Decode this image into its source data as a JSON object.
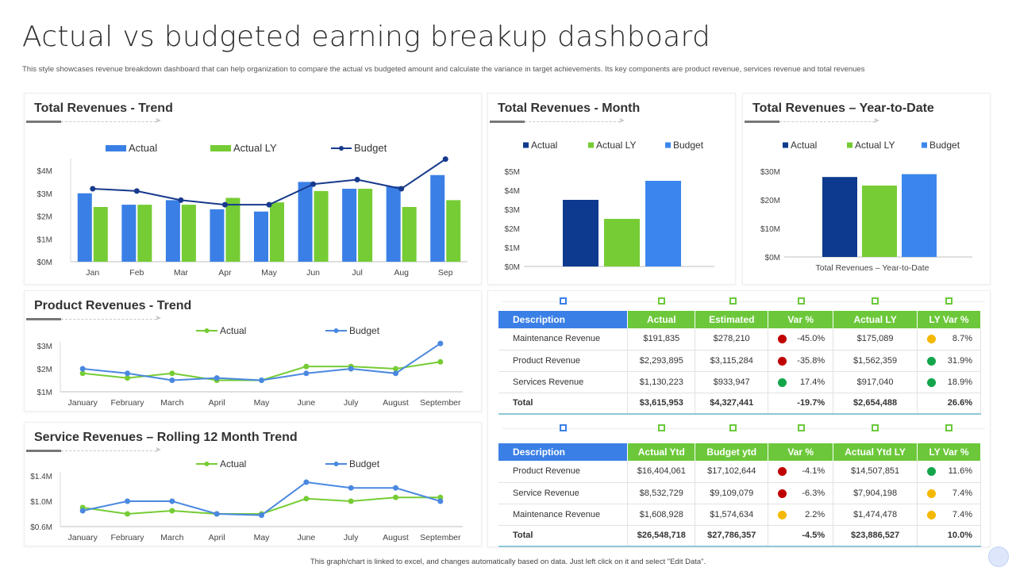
{
  "page": {
    "title": "Actual vs budgeted earning breakup dashboard",
    "subtitle": "This style showcases revenue breakdown dashboard that can help organization to compare the actual vs budgeted amount  and calculate the variance in target achievements. Its key components are product revenue, services revenue and total revenues",
    "footer": "This graph/chart is linked to excel, and changes automatically based on data. Just left click on it and select \"Edit Data\"."
  },
  "colors": {
    "actual": "#3a7fe6",
    "actual_ly": "#76cc34",
    "budget": "#173a8c",
    "month_actual": "#0d3a8e",
    "month_budget": "#3a86ee",
    "line_actual": "#76cc34",
    "line_budget": "#4a88e0",
    "header_green": "#6cc83a",
    "header_blue": "#3a7fe6",
    "status_red": "#c00000",
    "status_green": "#13a54a",
    "status_yellow": "#f5b800"
  },
  "chart_data": [
    {
      "id": "trend",
      "type": "bar",
      "title": "Total Revenues - Trend",
      "categories": [
        "Jan",
        "Feb",
        "Mar",
        "Apr",
        "May",
        "Jun",
        "Jul",
        "Aug",
        "Sep"
      ],
      "series": [
        {
          "name": "Actual",
          "type": "bar",
          "values": [
            3.0,
            2.5,
            2.7,
            2.3,
            2.2,
            3.5,
            3.2,
            3.3,
            3.8
          ]
        },
        {
          "name": "Actual LY",
          "type": "bar",
          "values": [
            2.4,
            2.5,
            2.5,
            2.8,
            2.6,
            3.1,
            3.2,
            2.4,
            2.7
          ]
        },
        {
          "name": "Budget",
          "type": "line",
          "values": [
            3.2,
            3.1,
            2.7,
            2.5,
            2.5,
            3.4,
            3.6,
            3.2,
            4.5
          ]
        }
      ],
      "yticks": [
        "$0M",
        "$1M",
        "$2M",
        "$3M",
        "$4M"
      ],
      "ylim": [
        0,
        4.5
      ],
      "legend": "top"
    },
    {
      "id": "month",
      "type": "bar",
      "title": "Total Revenues - Month",
      "categories": [
        ""
      ],
      "series": [
        {
          "name": "Actual",
          "values": [
            3.5
          ]
        },
        {
          "name": "Actual LY",
          "values": [
            2.5
          ]
        },
        {
          "name": "Budget",
          "values": [
            4.5
          ]
        }
      ],
      "yticks": [
        "$0M",
        "$1M",
        "$2M",
        "$3M",
        "$4M",
        "$5M"
      ],
      "ylim": [
        0,
        5
      ],
      "legend": "top"
    },
    {
      "id": "ytd",
      "type": "bar",
      "title": "Total Revenues – Year-to-Date",
      "categories": [
        "Total Revenues – Year-to-Date"
      ],
      "series": [
        {
          "name": "Actual",
          "values": [
            28
          ]
        },
        {
          "name": "Actual LY",
          "values": [
            25
          ]
        },
        {
          "name": "Budget",
          "values": [
            29
          ]
        }
      ],
      "yticks": [
        "$0M",
        "$10M",
        "$20M",
        "$30M"
      ],
      "ylim": [
        0,
        30
      ],
      "legend": "top"
    },
    {
      "id": "product",
      "type": "line",
      "title": "Product Revenues - Trend",
      "categories": [
        "January",
        "February",
        "March",
        "April",
        "May",
        "June",
        "July",
        "August",
        "September"
      ],
      "series": [
        {
          "name": "Actual",
          "values": [
            1.8,
            1.6,
            1.8,
            1.5,
            1.5,
            2.1,
            2.1,
            2.0,
            2.3
          ]
        },
        {
          "name": "Budget",
          "values": [
            2.0,
            1.8,
            1.5,
            1.6,
            1.5,
            1.8,
            2.0,
            1.8,
            3.1
          ]
        }
      ],
      "yticks": [
        "$1M",
        "$2M",
        "$3M"
      ],
      "ylim": [
        1,
        3
      ],
      "legend": "top"
    },
    {
      "id": "service",
      "type": "line",
      "title": "Service Revenues – Rolling 12 Month Trend",
      "categories": [
        "January",
        "February",
        "March",
        "April",
        "May",
        "June",
        "July",
        "August",
        "September"
      ],
      "series": [
        {
          "name": "Actual",
          "values": [
            0.9,
            0.8,
            0.85,
            0.8,
            0.8,
            1.04,
            1.0,
            1.06,
            1.06
          ]
        },
        {
          "name": "Budget",
          "values": [
            0.85,
            1.0,
            1.0,
            0.8,
            0.78,
            1.3,
            1.21,
            1.21,
            1.0
          ]
        }
      ],
      "yticks": [
        "$0.6M",
        "$1.0M",
        "$1.4M"
      ],
      "ylim": [
        0.6,
        1.4
      ],
      "legend": "top"
    }
  ],
  "table1": {
    "headers": [
      "Description",
      "Actual",
      "Estimated",
      "Var %",
      "Actual LY",
      "LY Var %"
    ],
    "rows": [
      {
        "desc": "Maintenance Revenue",
        "actual": "$191,835",
        "estimated": "$278,210",
        "var": "-45.0%",
        "var_status": "red",
        "actual_ly": "$175,089",
        "ly_var": "8.7%",
        "ly_status": "yellow"
      },
      {
        "desc": "Product Revenue",
        "actual": "$2,293,895",
        "estimated": "$3,115,284",
        "var": "-35.8%",
        "var_status": "red",
        "actual_ly": "$1,562,359",
        "ly_var": "31.9%",
        "ly_status": "green"
      },
      {
        "desc": "Services Revenue",
        "actual": "$1,130,223",
        "estimated": "$933,947",
        "var": "17.4%",
        "var_status": "green",
        "actual_ly": "$917,040",
        "ly_var": "18.9%",
        "ly_status": "green"
      }
    ],
    "total": {
      "desc": "Total",
      "actual": "$3,615,953",
      "estimated": "$4,327,441",
      "var": "-19.7%",
      "actual_ly": "$2,654,488",
      "ly_var": "26.6%"
    }
  },
  "table2": {
    "headers": [
      "Description",
      "Actual Ytd",
      "Budget ytd",
      "Var %",
      "Actual Ytd LY",
      "LY Var %"
    ],
    "rows": [
      {
        "desc": "Product Revenue",
        "actual": "$16,404,061",
        "estimated": "$17,102,644",
        "var": "-4.1%",
        "var_status": "red",
        "actual_ly": "$14,507,851",
        "ly_var": "11.6%",
        "ly_status": "green"
      },
      {
        "desc": "Service Revenue",
        "actual": "$8,532,729",
        "estimated": "$9,109,079",
        "var": "-6.3%",
        "var_status": "red",
        "actual_ly": "$7,904,198",
        "ly_var": "7.4%",
        "ly_status": "yellow"
      },
      {
        "desc": "Maintenance Revenue",
        "actual": "$1,608,928",
        "estimated": "$1,574,634",
        "var": "2.2%",
        "var_status": "yellow",
        "actual_ly": "$1,474,478",
        "ly_var": "7.4%",
        "ly_status": "yellow"
      }
    ],
    "total": {
      "desc": "Total",
      "actual": "$26,548,718",
      "estimated": "$27,786,357",
      "var": "-4.5%",
      "actual_ly": "$23,886,527",
      "ly_var": "10.0%"
    }
  }
}
